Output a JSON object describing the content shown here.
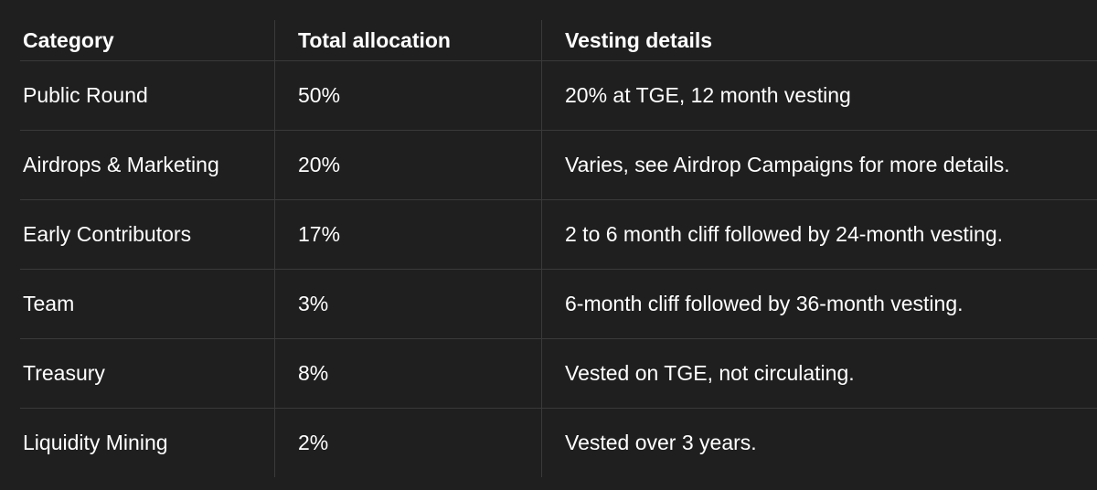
{
  "table": {
    "headers": {
      "category": "Category",
      "allocation": "Total allocation",
      "vesting": "Vesting details"
    },
    "rows": [
      {
        "category": "Public Round",
        "allocation": "50%",
        "vesting": "20% at TGE, 12 month vesting"
      },
      {
        "category": "Airdrops & Marketing",
        "allocation": "20%",
        "vesting": "Varies, see Airdrop Campaigns for more details."
      },
      {
        "category": "Early Contributors",
        "allocation": "17%",
        "vesting": "2 to 6 month cliff followed by 24-month vesting."
      },
      {
        "category": "Team",
        "allocation": "3%",
        "vesting": "6-month cliff followed by 36-month vesting."
      },
      {
        "category": "Treasury",
        "allocation": "8%",
        "vesting": "Vested on TGE, not circulating."
      },
      {
        "category": "Liquidity Mining",
        "allocation": "2%",
        "vesting": "Vested over 3 years."
      }
    ]
  }
}
